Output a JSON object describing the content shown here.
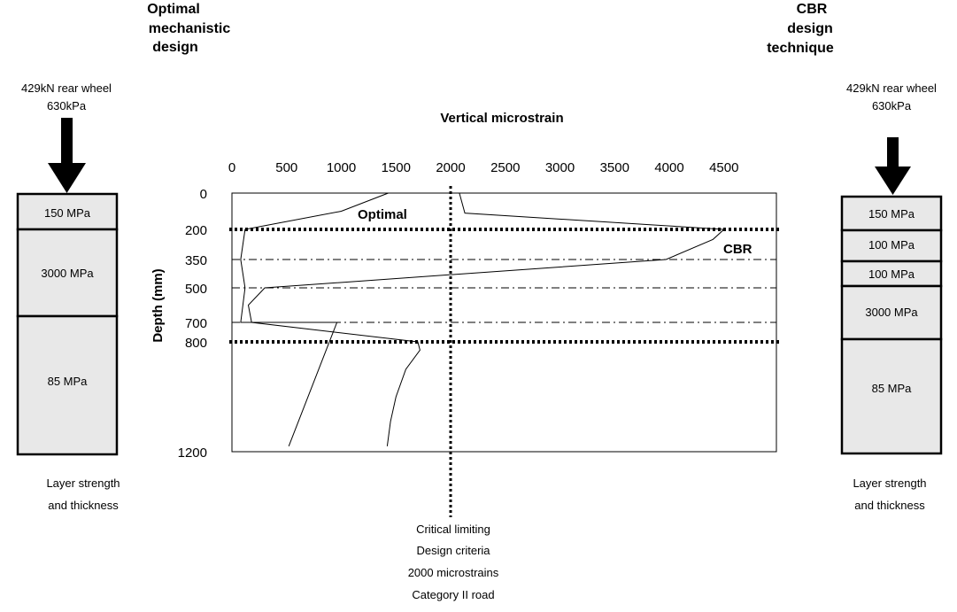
{
  "left_panel": {
    "title_lines": [
      "Optimal",
      "mechanistic",
      "design"
    ],
    "load_lines": [
      "429kN rear wheel",
      "630kPa"
    ],
    "layers": [
      {
        "label": "150 MPa",
        "top": 0,
        "bottom": 200
      },
      {
        "label": "3000 MPa",
        "top": 200,
        "bottom": 500
      },
      {
        "label": "85 MPa",
        "top": 500,
        "bottom": 1200
      }
    ],
    "caption_lines": [
      "Layer strength",
      "and thickness"
    ]
  },
  "right_panel": {
    "title_lines": [
      "CBR",
      "design",
      "technique"
    ],
    "load_lines": [
      "429kN rear wheel",
      "630kPa"
    ],
    "layers": [
      {
        "label": "150 MPa",
        "top": 0,
        "bottom": 200
      },
      {
        "label": "100 MPa",
        "top": 200,
        "bottom": 350
      },
      {
        "label": "100 MPa",
        "top": 350,
        "bottom": 500
      },
      {
        "label": "3000 MPa",
        "top": 500,
        "bottom": 700
      },
      {
        "label": "85 MPa",
        "top": 700,
        "bottom": 1200
      }
    ],
    "caption_lines": [
      "Layer strength",
      "and thickness"
    ]
  },
  "chart_data": {
    "type": "line",
    "title": "",
    "xlabel": "Vertical microstrain",
    "ylabel": "Depth (mm)",
    "xlim": [
      0,
      5000
    ],
    "ylim": [
      0,
      1200
    ],
    "x_ticks": [
      0,
      500,
      1000,
      1500,
      2000,
      2500,
      3000,
      3500,
      4000,
      4500
    ],
    "y_ticks": [
      0,
      200,
      350,
      500,
      700,
      800,
      1200
    ],
    "grid": false,
    "series": [
      {
        "name": "Optimal",
        "points": [
          [
            1430,
            0
          ],
          [
            1000,
            100
          ],
          [
            120,
            200
          ],
          [
            80,
            350
          ],
          [
            120,
            500
          ],
          [
            80,
            700
          ],
          [
            960,
            700
          ],
          [
            520,
            1180
          ]
        ]
      },
      {
        "name": "CBR",
        "points": [
          [
            1860,
            0
          ],
          [
            2080,
            0
          ],
          [
            2130,
            110
          ],
          [
            4500,
            200
          ],
          [
            4400,
            250
          ],
          [
            3970,
            350
          ],
          [
            300,
            500
          ],
          [
            150,
            600
          ],
          [
            180,
            700
          ],
          [
            1700,
            800
          ],
          [
            1720,
            830
          ],
          [
            1590,
            900
          ],
          [
            1500,
            1000
          ],
          [
            1450,
            1090
          ],
          [
            1420,
            1180
          ]
        ]
      }
    ],
    "reference_lines": {
      "vertical_x": 2000,
      "thick_depths": [
        200,
        800
      ],
      "thin_depths": [
        350,
        500,
        700
      ]
    },
    "annotation_lines": [
      "Critical limiting",
      "Design criteria",
      "2000 microstrains",
      "Category II road"
    ]
  }
}
